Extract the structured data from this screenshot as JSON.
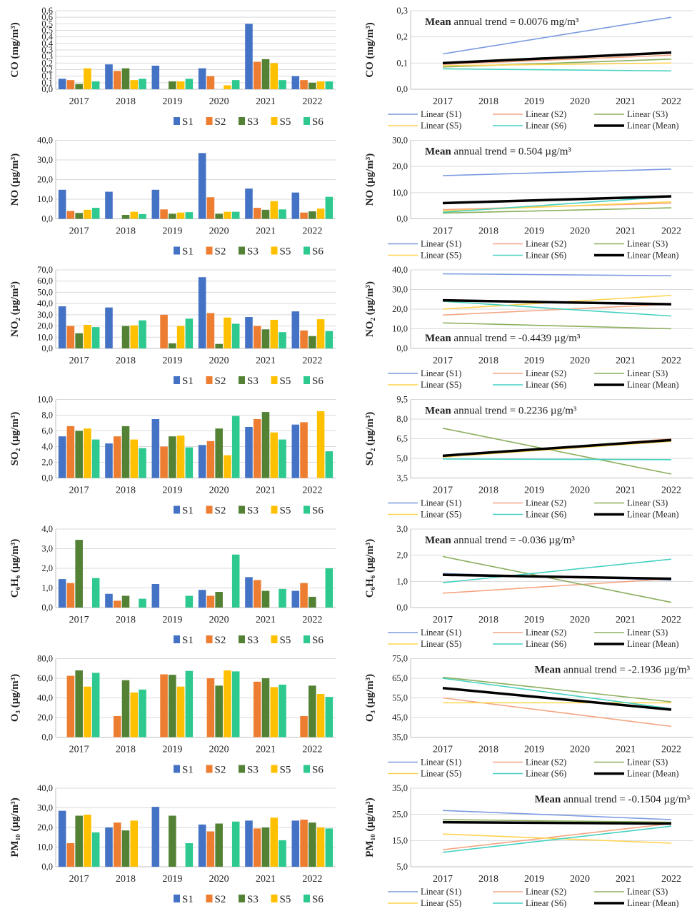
{
  "years": [
    "2017",
    "2018",
    "2019",
    "2020",
    "2021",
    "2022"
  ],
  "bar_colors": {
    "S1": "#4472C4",
    "S2": "#ED7D31",
    "S3": "#548235",
    "S5": "#FFC000",
    "S6": "#2DC98E"
  },
  "bar_legend": [
    "S1",
    "S2",
    "S3",
    "S5",
    "S6"
  ],
  "line_colors": {
    "S1": "#7B9AE0",
    "S2": "#F4A582",
    "S3": "#8AAE5C",
    "S5": "#FFD34E",
    "S6": "#45D1C0",
    "Mean": "#000000"
  },
  "line_legend": [
    "Linear (S1)",
    "Linear (S2)",
    "Linear (S3)",
    "Linear (S5)",
    "Linear (S6)",
    "Linear (Mean)"
  ],
  "chart_data": [
    {
      "type": "bar",
      "pollutant": "CO",
      "ylabel": "CO (mg/m³)",
      "ylim": [
        0,
        0.6
      ],
      "yticks": [
        "0,0",
        "0,1",
        "0,1",
        "0,2",
        "0,2",
        "0,3",
        "0,3",
        "0,4",
        "0,4",
        "0,5",
        "0,5",
        "0,6",
        "0,6"
      ],
      "ytick_values": [
        0,
        0.05,
        0.1,
        0.15,
        0.2,
        0.25,
        0.3,
        0.35,
        0.4,
        0.45,
        0.5,
        0.55,
        0.6
      ],
      "categories": [
        "2017",
        "2018",
        "2019",
        "2020",
        "2021",
        "2022"
      ],
      "series": [
        {
          "name": "S1",
          "values": [
            0.08,
            0.19,
            0.18,
            0.16,
            0.5,
            0.1
          ]
        },
        {
          "name": "S2",
          "values": [
            0.07,
            0.14,
            null,
            0.1,
            0.21,
            0.07
          ]
        },
        {
          "name": "S3",
          "values": [
            0.04,
            0.16,
            0.06,
            null,
            0.23,
            0.05
          ]
        },
        {
          "name": "S5",
          "values": [
            0.16,
            0.07,
            0.06,
            0.03,
            0.2,
            0.06
          ]
        },
        {
          "name": "S6",
          "values": [
            0.06,
            0.08,
            0.08,
            0.07,
            0.07,
            0.06
          ]
        }
      ]
    },
    {
      "type": "line",
      "pollutant": "CO",
      "ylabel": "CO (mg/m³)",
      "ylim": [
        0,
        0.3
      ],
      "yticks": [
        "0,0",
        "0,1",
        "0,2",
        "0,3"
      ],
      "ytick_values": [
        0,
        0.1,
        0.2,
        0.3
      ],
      "x": [
        "2017",
        "2022"
      ],
      "series": [
        {
          "name": "Linear (S1)",
          "values": [
            0.135,
            0.275
          ]
        },
        {
          "name": "Linear (S2)",
          "values": [
            0.095,
            0.13
          ]
        },
        {
          "name": "Linear (S3)",
          "values": [
            0.085,
            0.115
          ]
        },
        {
          "name": "Linear (S5)",
          "values": [
            0.09,
            0.1
          ]
        },
        {
          "name": "Linear (S6)",
          "values": [
            0.078,
            0.07
          ]
        },
        {
          "name": "Linear (Mean)",
          "values": [
            0.1,
            0.14
          ]
        }
      ],
      "annotation_bold": "Mean",
      "annotation_text": " annual trend = 0.0076 mg/m³",
      "annotation_pos": "top-left"
    },
    {
      "type": "bar",
      "pollutant": "NO",
      "ylabel": "NO (µg/m³)",
      "ylim": [
        0,
        40
      ],
      "yticks": [
        "0,0",
        "10,0",
        "20,0",
        "30,0",
        "40,0"
      ],
      "ytick_values": [
        0,
        10,
        20,
        30,
        40
      ],
      "categories": [
        "2017",
        "2018",
        "2019",
        "2020",
        "2021",
        "2022"
      ],
      "series": [
        {
          "name": "S1",
          "values": [
            14.8,
            13.8,
            14.8,
            33.5,
            15.4,
            13.4
          ]
        },
        {
          "name": "S2",
          "values": [
            4.0,
            null,
            4.8,
            11.0,
            5.6,
            3.2
          ]
        },
        {
          "name": "S3",
          "values": [
            3.0,
            2.0,
            2.6,
            2.6,
            4.6,
            3.8
          ]
        },
        {
          "name": "S5",
          "values": [
            4.6,
            3.6,
            3.2,
            3.6,
            9.0,
            5.2
          ]
        },
        {
          "name": "S6",
          "values": [
            5.6,
            2.4,
            3.4,
            3.6,
            4.8,
            11.2
          ]
        }
      ]
    },
    {
      "type": "line",
      "pollutant": "NO",
      "ylabel": "NO (µg/m³)",
      "ylim": [
        0,
        30
      ],
      "yticks": [
        "0,0",
        "10,0",
        "20,0",
        "30,0"
      ],
      "ytick_values": [
        0,
        10,
        20,
        30
      ],
      "x": [
        "2017",
        "2022"
      ],
      "series": [
        {
          "name": "Linear (S1)",
          "values": [
            16.5,
            19.0
          ]
        },
        {
          "name": "Linear (S2)",
          "values": [
            3.5,
            6.0
          ]
        },
        {
          "name": "Linear (S3)",
          "values": [
            2.2,
            4.2
          ]
        },
        {
          "name": "Linear (S5)",
          "values": [
            3.0,
            6.5
          ]
        },
        {
          "name": "Linear (S6)",
          "values": [
            2.5,
            8.5
          ]
        },
        {
          "name": "Linear (Mean)",
          "values": [
            6.0,
            8.6
          ]
        }
      ],
      "annotation_bold": "Mean",
      "annotation_text": " annual trend = 0.504 µg/m³",
      "annotation_pos": "top-left"
    },
    {
      "type": "bar",
      "pollutant": "NO2",
      "ylabel": "NO₂ (µg/m³)",
      "ylim": [
        0,
        70
      ],
      "yticks": [
        "0,0",
        "10,0",
        "20,0",
        "30,0",
        "40,0",
        "50,0",
        "60,0",
        "70,0"
      ],
      "ytick_values": [
        0,
        10,
        20,
        30,
        40,
        50,
        60,
        70
      ],
      "categories": [
        "2017",
        "2018",
        "2019",
        "2020",
        "2021",
        "2022"
      ],
      "series": [
        {
          "name": "S1",
          "values": [
            37.5,
            36.5,
            null,
            63.5,
            28.0,
            33.0
          ]
        },
        {
          "name": "S2",
          "values": [
            20.0,
            null,
            30.0,
            31.5,
            20.0,
            16.0
          ]
        },
        {
          "name": "S3",
          "values": [
            13.5,
            20.0,
            4.5,
            4.0,
            17.0,
            11.0
          ]
        },
        {
          "name": "S5",
          "values": [
            21.0,
            20.5,
            20.0,
            27.5,
            25.5,
            26.0
          ]
        },
        {
          "name": "S6",
          "values": [
            19.0,
            25.0,
            26.5,
            22.0,
            14.5,
            15.5
          ]
        }
      ]
    },
    {
      "type": "line",
      "pollutant": "NO2",
      "ylabel": "NO₂ (µg/m³)",
      "ylim": [
        0,
        40
      ],
      "yticks": [
        "0,0",
        "10,0",
        "20,0",
        "30,0",
        "40,0"
      ],
      "ytick_values": [
        0,
        10,
        20,
        30,
        40
      ],
      "x": [
        "2017",
        "2022"
      ],
      "series": [
        {
          "name": "Linear (S1)",
          "values": [
            38.0,
            37.0
          ]
        },
        {
          "name": "Linear (S2)",
          "values": [
            17.0,
            22.5
          ]
        },
        {
          "name": "Linear (S3)",
          "values": [
            13.0,
            10.0
          ]
        },
        {
          "name": "Linear (S5)",
          "values": [
            20.0,
            27.0
          ]
        },
        {
          "name": "Linear (S6)",
          "values": [
            24.0,
            16.5
          ]
        },
        {
          "name": "Linear (Mean)",
          "values": [
            24.5,
            22.5
          ]
        }
      ],
      "annotation_bold": "Mean",
      "annotation_text": " annual trend = -0.4439 µg/m³",
      "annotation_pos": "bottom-left"
    },
    {
      "type": "bar",
      "pollutant": "SO2",
      "ylabel": "SO₂ (µg/m³)",
      "ylim": [
        0,
        10
      ],
      "yticks": [
        "0,0",
        "2,0",
        "4,0",
        "6,0",
        "8,0",
        "10,0"
      ],
      "ytick_values": [
        0,
        2,
        4,
        6,
        8,
        10
      ],
      "categories": [
        "2017",
        "2018",
        "2019",
        "2020",
        "2021",
        "2022"
      ],
      "series": [
        {
          "name": "S1",
          "values": [
            5.3,
            4.4,
            7.5,
            4.2,
            6.5,
            6.8
          ]
        },
        {
          "name": "S2",
          "values": [
            6.6,
            5.3,
            4.0,
            4.7,
            7.5,
            7.1
          ]
        },
        {
          "name": "S3",
          "values": [
            6.0,
            6.6,
            5.3,
            6.3,
            8.4,
            null
          ]
        },
        {
          "name": "S5",
          "values": [
            6.3,
            4.9,
            5.4,
            2.9,
            5.8,
            8.5
          ]
        },
        {
          "name": "S6",
          "values": [
            4.9,
            3.8,
            3.9,
            7.9,
            4.9,
            3.4
          ]
        }
      ]
    },
    {
      "type": "line",
      "pollutant": "SO2",
      "ylabel": "SO₂ (µg/m³)",
      "ylim": [
        3.5,
        9.5
      ],
      "yticks": [
        "3,5",
        "5,0",
        "6,5",
        "8,0",
        "9,5"
      ],
      "ytick_values": [
        3.5,
        5.0,
        6.5,
        8.0,
        9.5
      ],
      "x": [
        "2017",
        "2022"
      ],
      "series": [
        {
          "name": "Linear (S1)",
          "values": [
            5.2,
            6.4
          ]
        },
        {
          "name": "Linear (S2)",
          "values": [
            5.1,
            6.5
          ]
        },
        {
          "name": "Linear (S3)",
          "values": [
            7.3,
            3.8
          ]
        },
        {
          "name": "Linear (S5)",
          "values": [
            5.1,
            6.3
          ]
        },
        {
          "name": "Linear (S6)",
          "values": [
            4.95,
            4.9
          ]
        },
        {
          "name": "Linear (Mean)",
          "values": [
            5.2,
            6.4
          ]
        }
      ],
      "annotation_bold": "Mean",
      "annotation_text": " annual trend = 0.2236 µg/m³",
      "annotation_pos": "top-left"
    },
    {
      "type": "bar",
      "pollutant": "C6H6",
      "ylabel": "C₆H₆ (µg/m³)",
      "ylim": [
        0,
        4
      ],
      "yticks": [
        "0,0",
        "1,0",
        "2,0",
        "3,0",
        "4,0"
      ],
      "ytick_values": [
        0,
        1,
        2,
        3,
        4
      ],
      "categories": [
        "2017",
        "2018",
        "2019",
        "2020",
        "2021",
        "2022"
      ],
      "series": [
        {
          "name": "S1",
          "values": [
            1.45,
            0.7,
            1.2,
            0.9,
            1.55,
            0.85
          ]
        },
        {
          "name": "S2",
          "values": [
            1.25,
            0.35,
            null,
            0.6,
            1.4,
            1.25
          ]
        },
        {
          "name": "S3",
          "values": [
            3.45,
            0.6,
            null,
            0.8,
            0.85,
            0.55
          ]
        },
        {
          "name": "S5",
          "values": [
            null,
            null,
            null,
            null,
            null,
            null
          ]
        },
        {
          "name": "S6",
          "values": [
            1.5,
            0.45,
            0.6,
            2.7,
            0.95,
            2.0
          ]
        }
      ]
    },
    {
      "type": "line",
      "pollutant": "C6H6",
      "ylabel": "C₆H₆ (µg/m³)",
      "ylim": [
        0,
        3
      ],
      "yticks": [
        "0,0",
        "1,0",
        "2,0",
        "3,0"
      ],
      "ytick_values": [
        0,
        1,
        2,
        3
      ],
      "x": [
        "2017",
        "2022"
      ],
      "series": [
        {
          "name": "Linear (S1)",
          "values": [
            1.3,
            1.05
          ]
        },
        {
          "name": "Linear (S2)",
          "values": [
            0.55,
            1.1
          ]
        },
        {
          "name": "Linear (S3)",
          "values": [
            1.95,
            0.2
          ]
        },
        {
          "name": "Linear (S5)",
          "values": [
            null,
            null
          ]
        },
        {
          "name": "Linear (S6)",
          "values": [
            0.95,
            1.85
          ]
        },
        {
          "name": "Linear (Mean)",
          "values": [
            1.25,
            1.1
          ]
        }
      ],
      "annotation_bold": "Mean",
      "annotation_text": " annual trend = -0.036 µg/m³",
      "annotation_pos": "top-left"
    },
    {
      "type": "bar",
      "pollutant": "O3",
      "ylabel": "O₃ (µg/m³)",
      "ylim": [
        0,
        80
      ],
      "yticks": [
        "0,0",
        "20,0",
        "40,0",
        "60,0",
        "80,0"
      ],
      "ytick_values": [
        0,
        20,
        40,
        60,
        80
      ],
      "categories": [
        "2017",
        "2018",
        "2019",
        "2020",
        "2021",
        "2022"
      ],
      "series": [
        {
          "name": "S1",
          "values": [
            null,
            null,
            null,
            null,
            null,
            null
          ]
        },
        {
          "name": "S2",
          "values": [
            62.5,
            21.5,
            64.0,
            60.0,
            56.5,
            21.5
          ]
        },
        {
          "name": "S3",
          "values": [
            68.0,
            58.0,
            63.5,
            52.5,
            60.0,
            52.5
          ]
        },
        {
          "name": "S5",
          "values": [
            51.5,
            45.5,
            51.5,
            68.0,
            51.0,
            44.0
          ]
        },
        {
          "name": "S6",
          "values": [
            65.5,
            48.5,
            67.5,
            67.0,
            53.5,
            41.0
          ]
        }
      ]
    },
    {
      "type": "line",
      "pollutant": "O3",
      "ylabel": "O₃ (µg/m³)",
      "ylim": [
        35,
        75
      ],
      "yticks": [
        "35,0",
        "45,0",
        "55,0",
        "65,0",
        "75,0"
      ],
      "ytick_values": [
        35,
        45,
        55,
        65,
        75
      ],
      "x": [
        "2017",
        "2022"
      ],
      "series": [
        {
          "name": "Linear (S1)",
          "values": [
            null,
            null
          ]
        },
        {
          "name": "Linear (S2)",
          "values": [
            55.0,
            40.5
          ]
        },
        {
          "name": "Linear (S3)",
          "values": [
            65.5,
            53.0
          ]
        },
        {
          "name": "Linear (S5)",
          "values": [
            52.5,
            52.5
          ]
        },
        {
          "name": "Linear (S6)",
          "values": [
            65.0,
            49.5
          ]
        },
        {
          "name": "Linear (Mean)",
          "values": [
            60.0,
            49.0
          ]
        }
      ],
      "annotation_bold": "Mean",
      "annotation_text": " annual trend = -2.1936 µg/m³",
      "annotation_pos": "top-right"
    },
    {
      "type": "bar",
      "pollutant": "PM10",
      "ylabel": "PM₁₀ (µg/m³)",
      "ylim": [
        0,
        40
      ],
      "yticks": [
        "0,0",
        "10,0",
        "20,0",
        "30,0",
        "40,0"
      ],
      "ytick_values": [
        0,
        10,
        20,
        30,
        40
      ],
      "categories": [
        "2017",
        "2018",
        "2019",
        "2020",
        "2021",
        "2022"
      ],
      "series": [
        {
          "name": "S1",
          "values": [
            28.5,
            20.0,
            30.5,
            21.5,
            23.5,
            23.5
          ]
        },
        {
          "name": "S2",
          "values": [
            12.0,
            22.5,
            null,
            18.0,
            19.5,
            24.0
          ]
        },
        {
          "name": "S3",
          "values": [
            26.0,
            18.5,
            26.0,
            22.0,
            20.0,
            22.5
          ]
        },
        {
          "name": "S5",
          "values": [
            26.5,
            23.5,
            null,
            null,
            25.0,
            20.0
          ]
        },
        {
          "name": "S6",
          "values": [
            17.5,
            null,
            12.0,
            23.0,
            13.5,
            19.5
          ]
        }
      ]
    },
    {
      "type": "line",
      "pollutant": "PM10",
      "ylabel": "PM₁₀ (µg/m³)",
      "ylim": [
        5,
        35
      ],
      "yticks": [
        "5,0",
        "15,0",
        "25,0",
        "35,0"
      ],
      "ytick_values": [
        5,
        15,
        25,
        35
      ],
      "x": [
        "2017",
        "2022"
      ],
      "series": [
        {
          "name": "Linear (S1)",
          "values": [
            26.5,
            23.0
          ]
        },
        {
          "name": "Linear (S2)",
          "values": [
            11.5,
            21.5
          ]
        },
        {
          "name": "Linear (S3)",
          "values": [
            23.0,
            22.0
          ]
        },
        {
          "name": "Linear (S5)",
          "values": [
            17.5,
            14.0
          ]
        },
        {
          "name": "Linear (S6)",
          "values": [
            10.5,
            20.5
          ]
        },
        {
          "name": "Linear (Mean)",
          "values": [
            22.0,
            21.5
          ]
        }
      ],
      "annotation_bold": "Mean",
      "annotation_text": " annual trend = -0.1504 µg/m³",
      "annotation_pos": "top-right"
    }
  ]
}
